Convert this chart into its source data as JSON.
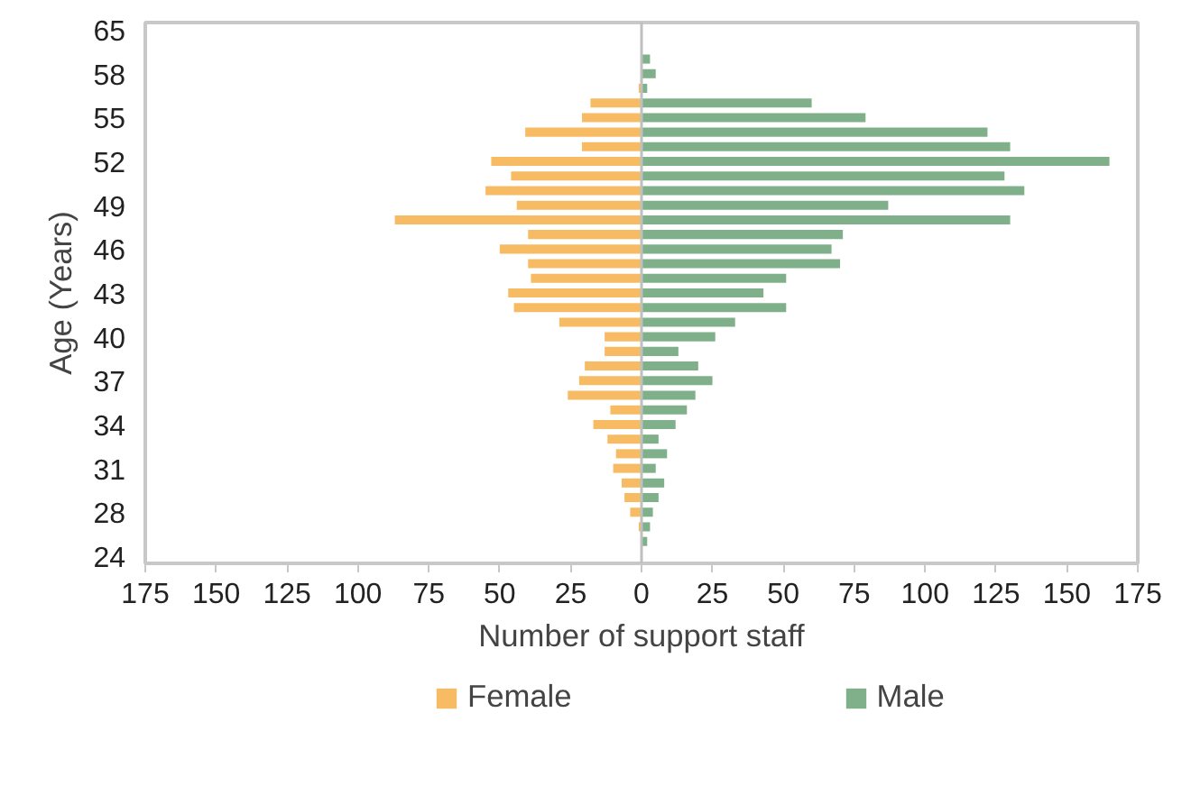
{
  "chart_data": {
    "type": "bar",
    "orientation": "horizontal",
    "xlabel": "Number of support staff",
    "ylabel": "Age (Years)",
    "categories": [
      "65",
      null,
      null,
      "58",
      null,
      null,
      "55",
      null,
      null,
      "52",
      null,
      null,
      "49",
      null,
      null,
      "46",
      null,
      null,
      "43",
      null,
      null,
      "40",
      null,
      null,
      "37",
      null,
      null,
      "34",
      null,
      null,
      "31",
      null,
      null,
      "28",
      null,
      null,
      "24"
    ],
    "xlim": [
      -175,
      175
    ],
    "xticks": [
      {
        "value": -175,
        "label": "175"
      },
      {
        "value": -150,
        "label": "150"
      },
      {
        "value": -125,
        "label": "125"
      },
      {
        "value": -100,
        "label": "100"
      },
      {
        "value": -75,
        "label": "75"
      },
      {
        "value": -50,
        "label": "50"
      },
      {
        "value": -25,
        "label": "25"
      },
      0,
      25,
      50,
      75,
      100,
      125,
      150,
      175
    ],
    "legend": "bottom",
    "stacked": true,
    "series": [
      {
        "name": "Female",
        "color": "#f6bb63",
        "values": [
          0,
          0,
          0,
          0,
          -1,
          -18,
          -21,
          -41,
          -21,
          -53,
          -46,
          -55,
          -44,
          -87,
          -40,
          -50,
          -40,
          -39,
          -47,
          -45,
          -29,
          -13,
          -13,
          -20,
          -22,
          -26,
          -11,
          -17,
          -12,
          -9,
          -10,
          -7,
          -6,
          -4,
          -1,
          0,
          0
        ]
      },
      {
        "name": "Male",
        "color": "#7fb08a",
        "values": [
          0,
          0,
          3,
          5,
          2,
          60,
          79,
          122,
          130,
          165,
          128,
          135,
          87,
          130,
          71,
          67,
          70,
          51,
          43,
          51,
          33,
          26,
          13,
          20,
          25,
          19,
          16,
          12,
          6,
          9,
          5,
          8,
          6,
          4,
          3,
          2,
          0
        ]
      }
    ]
  }
}
